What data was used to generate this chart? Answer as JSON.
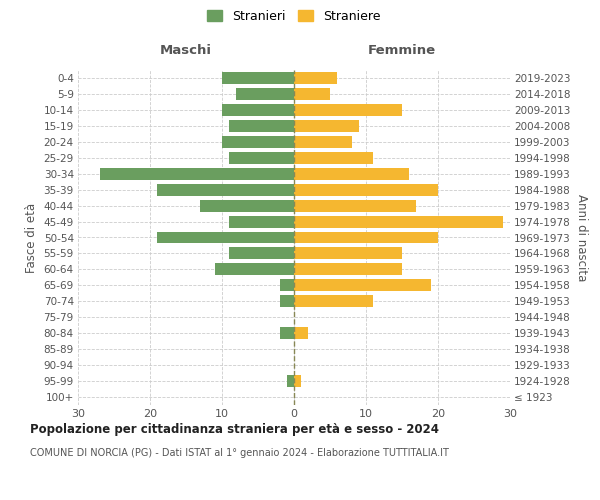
{
  "age_groups": [
    "100+",
    "95-99",
    "90-94",
    "85-89",
    "80-84",
    "75-79",
    "70-74",
    "65-69",
    "60-64",
    "55-59",
    "50-54",
    "45-49",
    "40-44",
    "35-39",
    "30-34",
    "25-29",
    "20-24",
    "15-19",
    "10-14",
    "5-9",
    "0-4"
  ],
  "birth_years": [
    "≤ 1923",
    "1924-1928",
    "1929-1933",
    "1934-1938",
    "1939-1943",
    "1944-1948",
    "1949-1953",
    "1954-1958",
    "1959-1963",
    "1964-1968",
    "1969-1973",
    "1974-1978",
    "1979-1983",
    "1984-1988",
    "1989-1993",
    "1994-1998",
    "1999-2003",
    "2004-2008",
    "2009-2013",
    "2014-2018",
    "2019-2023"
  ],
  "males": [
    0,
    1,
    0,
    0,
    2,
    0,
    2,
    2,
    11,
    9,
    19,
    9,
    13,
    19,
    27,
    9,
    10,
    9,
    10,
    8,
    10
  ],
  "females": [
    0,
    1,
    0,
    0,
    2,
    0,
    11,
    19,
    15,
    15,
    20,
    29,
    17,
    20,
    16,
    11,
    8,
    9,
    15,
    5,
    6
  ],
  "male_color": "#6a9e5f",
  "female_color": "#f5b730",
  "background_color": "#ffffff",
  "grid_color": "#cccccc",
  "dashed_line_color": "#888855",
  "title": "Popolazione per cittadinanza straniera per età e sesso - 2024",
  "subtitle": "COMUNE DI NORCIA (PG) - Dati ISTAT al 1° gennaio 2024 - Elaborazione TUTTITALIA.IT",
  "xlabel_left": "Maschi",
  "xlabel_right": "Femmine",
  "ylabel_left": "Fasce di età",
  "ylabel_right": "Anni di nascita",
  "legend_male": "Stranieri",
  "legend_female": "Straniere",
  "xlim": 30,
  "tick_step": 10
}
